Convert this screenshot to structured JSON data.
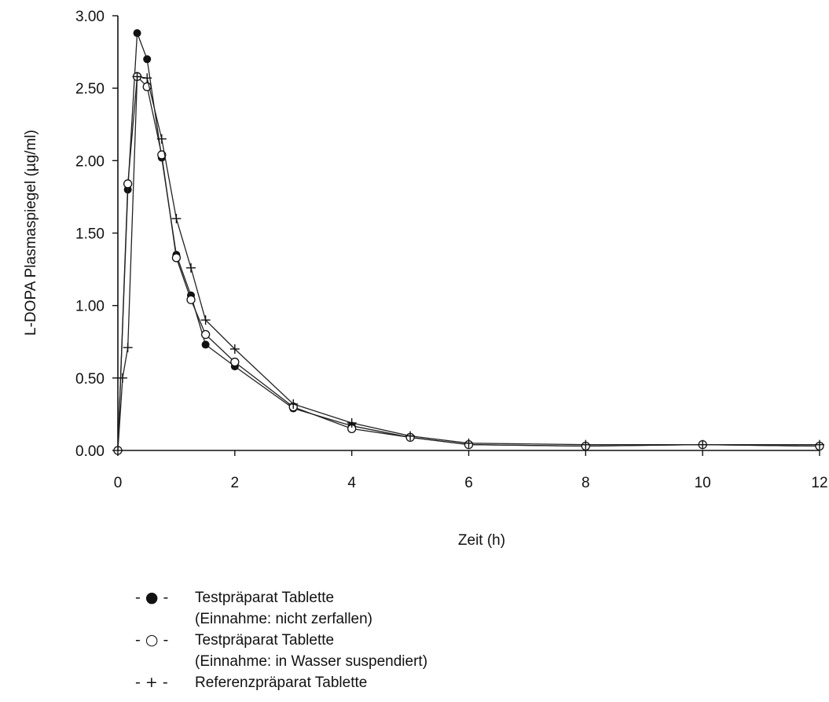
{
  "chart_data": {
    "type": "line",
    "xlabel": "Zeit (h)",
    "ylabel": "L-DOPA Plasmaspiegel (µg/ml)",
    "xlim": [
      0,
      12
    ],
    "ylim": [
      0,
      3
    ],
    "x_ticks": [
      "0",
      "2",
      "4",
      "6",
      "8",
      "10",
      "12"
    ],
    "y_ticks": [
      "0.00",
      "0.50",
      "1.00",
      "1.50",
      "2.00",
      "2.50",
      "3.00"
    ],
    "grid": false,
    "legend_position": "bottom",
    "series": [
      {
        "marker": "filled-circle",
        "legend_symbol": "- ● -",
        "name": "Testpräparat Tablette",
        "name_line2": "(Einnahme: nicht zerfallen)",
        "points": [
          [
            0,
            0
          ],
          [
            0.17,
            1.8
          ],
          [
            0.33,
            2.88
          ],
          [
            0.5,
            2.7
          ],
          [
            0.75,
            2.02
          ],
          [
            1,
            1.35
          ],
          [
            1.25,
            1.07
          ],
          [
            1.5,
            0.73
          ],
          [
            2,
            0.58
          ],
          [
            3,
            0.29
          ],
          [
            4,
            0.17
          ],
          [
            5,
            0.09
          ],
          [
            6,
            0.04
          ],
          [
            8,
            0.03
          ],
          [
            10,
            0.04
          ],
          [
            12,
            0.03
          ]
        ]
      },
      {
        "marker": "open-circle",
        "legend_symbol": "- ○ -",
        "name": "Testpräparat Tablette",
        "name_line2": "(Einnahme: in Wasser suspendiert)",
        "points": [
          [
            0,
            0
          ],
          [
            0.17,
            1.84
          ],
          [
            0.33,
            2.58
          ],
          [
            0.5,
            2.51
          ],
          [
            0.75,
            2.04
          ],
          [
            1,
            1.33
          ],
          [
            1.25,
            1.04
          ],
          [
            1.5,
            0.8
          ],
          [
            2,
            0.61
          ],
          [
            3,
            0.3
          ],
          [
            4,
            0.15
          ],
          [
            5,
            0.09
          ],
          [
            6,
            0.04
          ],
          [
            8,
            0.03
          ],
          [
            10,
            0.04
          ],
          [
            12,
            0.03
          ]
        ]
      },
      {
        "marker": "plus",
        "legend_symbol": "- + -",
        "name": "Referenzpräparat Tablette",
        "name_line2": "",
        "points": [
          [
            0,
            0
          ],
          [
            0.08,
            0.5
          ],
          [
            0.17,
            0.71
          ],
          [
            0.33,
            2.58
          ],
          [
            0.5,
            2.57
          ],
          [
            0.75,
            2.15
          ],
          [
            1,
            1.6
          ],
          [
            1.25,
            1.26
          ],
          [
            1.5,
            0.9
          ],
          [
            2,
            0.7
          ],
          [
            3,
            0.32
          ],
          [
            4,
            0.19
          ],
          [
            5,
            0.1
          ],
          [
            6,
            0.05
          ],
          [
            8,
            0.04
          ],
          [
            10,
            0.04
          ],
          [
            12,
            0.04
          ]
        ]
      }
    ]
  }
}
